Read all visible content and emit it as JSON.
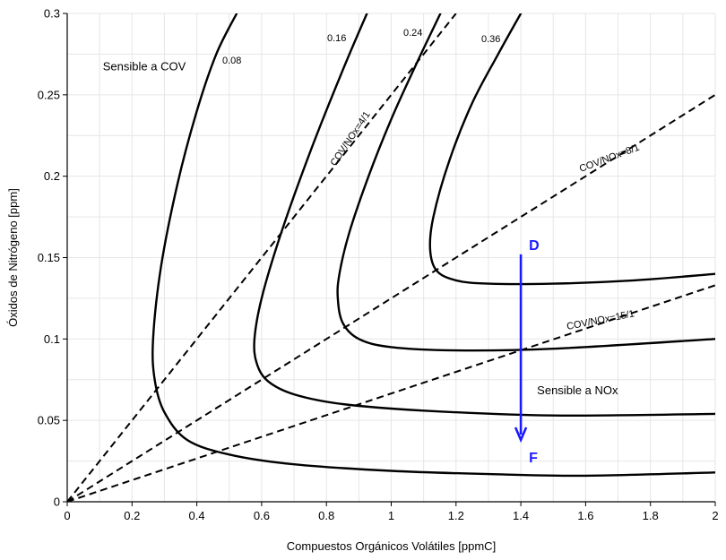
{
  "chart_data": {
    "type": "line",
    "title": "",
    "xlabel": "Compuestos Orgánicos Volátiles [ppmC]",
    "ylabel": "Óxidos de Nitrógeno [ppm]",
    "xlim": [
      0,
      2
    ],
    "ylim": [
      0,
      0.3
    ],
    "grid": true,
    "x_ticks": [
      0,
      0.2,
      0.4,
      0.6,
      0.8,
      1.0,
      1.2,
      1.4,
      1.6,
      1.8,
      2.0
    ],
    "x_tick_labels": [
      "0",
      "0.2",
      "0.4",
      "0.6",
      "0.8",
      "1",
      "1.2",
      "1.4",
      "1.6",
      "1.8",
      "2"
    ],
    "y_ticks": [
      0,
      0.05,
      0.1,
      0.15,
      0.2,
      0.25,
      0.3
    ],
    "y_tick_labels": [
      "0",
      "0.05",
      "0.1",
      "0.15",
      "0.2",
      "0.25",
      "0.3"
    ],
    "series": [
      {
        "name": "0.08",
        "label": "0.08",
        "points": [
          [
            0.523,
            0.3
          ],
          [
            0.46,
            0.275
          ],
          [
            0.4,
            0.24
          ],
          [
            0.34,
            0.195
          ],
          [
            0.29,
            0.145
          ],
          [
            0.265,
            0.1
          ],
          [
            0.27,
            0.075
          ],
          [
            0.3,
            0.055
          ],
          [
            0.37,
            0.038
          ],
          [
            0.5,
            0.029
          ],
          [
            0.7,
            0.023
          ],
          [
            1.0,
            0.019
          ],
          [
            1.3,
            0.017
          ],
          [
            1.6,
            0.016
          ],
          [
            2.0,
            0.018
          ]
        ]
      },
      {
        "name": "0.16",
        "label": "0.16",
        "points": [
          [
            0.925,
            0.3
          ],
          [
            0.85,
            0.265
          ],
          [
            0.75,
            0.215
          ],
          [
            0.66,
            0.165
          ],
          [
            0.6,
            0.125
          ],
          [
            0.578,
            0.1
          ],
          [
            0.585,
            0.085
          ],
          [
            0.62,
            0.074
          ],
          [
            0.7,
            0.066
          ],
          [
            0.85,
            0.06
          ],
          [
            1.1,
            0.056
          ],
          [
            1.5,
            0.053
          ],
          [
            2.0,
            0.054
          ]
        ]
      },
      {
        "name": "0.24",
        "label": "0.24",
        "points": [
          [
            1.152,
            0.3
          ],
          [
            1.08,
            0.27
          ],
          [
            1.0,
            0.235
          ],
          [
            0.93,
            0.2
          ],
          [
            0.87,
            0.165
          ],
          [
            0.84,
            0.14
          ],
          [
            0.835,
            0.125
          ],
          [
            0.85,
            0.11
          ],
          [
            0.9,
            0.1
          ],
          [
            1.0,
            0.095
          ],
          [
            1.2,
            0.093
          ],
          [
            1.5,
            0.094
          ],
          [
            2.0,
            0.1
          ]
        ]
      },
      {
        "name": "0.36",
        "label": "0.36",
        "points": [
          [
            1.4,
            0.3
          ],
          [
            1.33,
            0.275
          ],
          [
            1.25,
            0.245
          ],
          [
            1.18,
            0.21
          ],
          [
            1.13,
            0.175
          ],
          [
            1.12,
            0.155
          ],
          [
            1.14,
            0.142
          ],
          [
            1.2,
            0.136
          ],
          [
            1.3,
            0.134
          ],
          [
            1.5,
            0.134
          ],
          [
            1.75,
            0.136
          ],
          [
            2.0,
            0.14
          ]
        ]
      }
    ],
    "ratio_lines": [
      {
        "label": "COV/NOx=4/1",
        "x": [
          0,
          1.2
        ],
        "y": [
          0,
          0.3
        ]
      },
      {
        "label": "COV/NOx=8/1",
        "x": [
          0,
          2.0
        ],
        "y": [
          0,
          0.25
        ]
      },
      {
        "label": "COV/NOx=15/1",
        "x": [
          0,
          2.0
        ],
        "y": [
          0,
          0.133
        ]
      }
    ],
    "annotations": [
      {
        "text": "Sensible a COV",
        "x": 0.11,
        "y": 0.265
      },
      {
        "text": "Sensible a NOx",
        "x": 1.45,
        "y": 0.066
      }
    ],
    "arrow": {
      "from_label": "D",
      "to_label": "F",
      "x": 1.4,
      "y_start": 0.152,
      "y_end": 0.038,
      "color": "#1a1aff"
    }
  }
}
